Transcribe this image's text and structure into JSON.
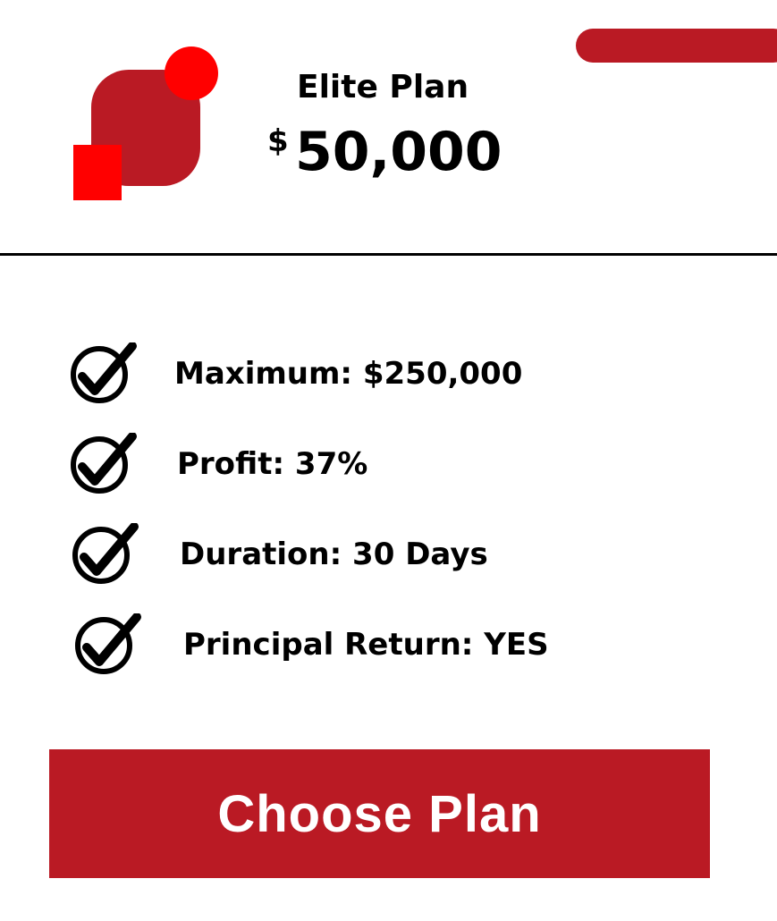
{
  "theme": {
    "accent": "#BA1A24",
    "accent_bright": "#FF0000",
    "text": "#000000",
    "background": "#FFFFFF"
  },
  "header": {
    "plan_name": "Elite Plan",
    "currency_symbol": "$",
    "price": "50,000"
  },
  "features": [
    {
      "icon": "check-circle-icon",
      "label": "Maximum: $250,000"
    },
    {
      "icon": "check-circle-icon",
      "label": "Profit: 37%"
    },
    {
      "icon": "check-circle-icon",
      "label": "Duration: 30 Days"
    },
    {
      "icon": "check-circle-icon",
      "label": "Principal Return: YES"
    }
  ],
  "cta": {
    "label": "Choose Plan"
  }
}
